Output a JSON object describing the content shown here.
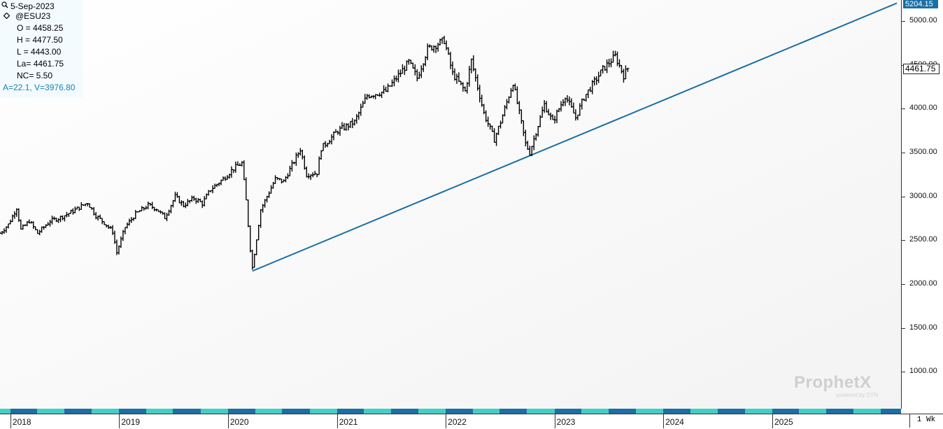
{
  "info": {
    "date": "5-Sep-2023",
    "symbol": "@ESU23",
    "open": "O = 4458.25",
    "high": "H = 4477.50",
    "low": "L = 4443.00",
    "last": "La= 4461.75",
    "net_change": "NC= 5.50",
    "trendline": "A=22.1, V=3976.80",
    "icons": [
      "magnifier-icon",
      "diamond-icon"
    ]
  },
  "axis": {
    "price_ticks": [
      "5000.00",
      "4500.00",
      "4000.00",
      "3500.00",
      "3000.00",
      "2500.00",
      "2000.00",
      "1500.00",
      "1000.00"
    ],
    "top_price_tag": "5204.15",
    "last_price_tag": "4461.75",
    "years": [
      "2018",
      "2019",
      "2020",
      "2021",
      "2022",
      "2023",
      "2024",
      "2025"
    ],
    "interval": "1 Wk"
  },
  "watermark": {
    "brand": "ProphetX",
    "sub": "powered by DTN"
  },
  "colors": {
    "trendline": "#1a6fa5",
    "bars": "#000000",
    "band_dark": "#1a6fa5",
    "band_light": "#3fd1c3"
  },
  "chart_data": {
    "type": "line",
    "ohlc_style": "weekly OHLC bars",
    "y_scale": "linear",
    "ylim": [
      580,
      5240
    ],
    "y_axis_position": "right",
    "x_axis": "dates",
    "xlim": [
      "2017-11-27",
      "2026-03-09"
    ],
    "series": [
      {
        "name": "",
        "values_kind": "approximate weekly closes",
        "points": [
          [
            "2017-11-27",
            2580
          ],
          [
            "2017-12-25",
            2680
          ],
          [
            "2018-01-22",
            2870
          ],
          [
            "2018-02-05",
            2620
          ],
          [
            "2018-03-05",
            2720
          ],
          [
            "2018-04-02",
            2580
          ],
          [
            "2018-05-14",
            2720
          ],
          [
            "2018-06-18",
            2760
          ],
          [
            "2018-07-23",
            2820
          ],
          [
            "2018-09-17",
            2930
          ],
          [
            "2018-10-15",
            2780
          ],
          [
            "2018-11-12",
            2700
          ],
          [
            "2018-12-10",
            2600
          ],
          [
            "2018-12-24",
            2360
          ],
          [
            "2019-01-21",
            2650
          ],
          [
            "2019-02-25",
            2800
          ],
          [
            "2019-04-08",
            2900
          ],
          [
            "2019-05-06",
            2860
          ],
          [
            "2019-06-03",
            2760
          ],
          [
            "2019-07-08",
            3000
          ],
          [
            "2019-08-05",
            2900
          ],
          [
            "2019-09-09",
            2980
          ],
          [
            "2019-10-07",
            2920
          ],
          [
            "2019-11-04",
            3080
          ],
          [
            "2019-12-16",
            3200
          ],
          [
            "2020-01-20",
            3320
          ],
          [
            "2020-02-17",
            3380
          ],
          [
            "2020-03-02",
            2950
          ],
          [
            "2020-03-16",
            2400
          ],
          [
            "2020-03-23",
            2190
          ],
          [
            "2020-04-20",
            2850
          ],
          [
            "2020-06-08",
            3200
          ],
          [
            "2020-07-06",
            3170
          ],
          [
            "2020-08-31",
            3540
          ],
          [
            "2020-09-21",
            3250
          ],
          [
            "2020-10-26",
            3270
          ],
          [
            "2020-11-09",
            3550
          ],
          [
            "2021-01-04",
            3750
          ],
          [
            "2021-03-01",
            3850
          ],
          [
            "2021-04-12",
            4150
          ],
          [
            "2021-06-14",
            4200
          ],
          [
            "2021-08-30",
            4530
          ],
          [
            "2021-09-27",
            4350
          ],
          [
            "2021-11-01",
            4680
          ],
          [
            "2021-12-27",
            4780
          ],
          [
            "2022-01-24",
            4400
          ],
          [
            "2022-03-07",
            4200
          ],
          [
            "2022-03-28",
            4550
          ],
          [
            "2022-05-09",
            3950
          ],
          [
            "2022-06-13",
            3650
          ],
          [
            "2022-07-04",
            3850
          ],
          [
            "2022-08-15",
            4300
          ],
          [
            "2022-09-26",
            3600
          ],
          [
            "2022-10-10",
            3500
          ],
          [
            "2022-11-28",
            4050
          ],
          [
            "2022-12-26",
            3850
          ],
          [
            "2023-02-06",
            4150
          ],
          [
            "2023-03-13",
            3900
          ],
          [
            "2023-04-10",
            4130
          ],
          [
            "2023-06-12",
            4450
          ],
          [
            "2023-07-24",
            4600
          ],
          [
            "2023-08-21",
            4380
          ],
          [
            "2023-09-04",
            4462
          ]
        ]
      }
    ],
    "trendline": {
      "from": [
        "2020-03-23",
        2150
      ],
      "to": [
        "2026-02-23",
        5204.15
      ]
    },
    "last_value": 4461.75,
    "grid": false,
    "legend": "none"
  }
}
